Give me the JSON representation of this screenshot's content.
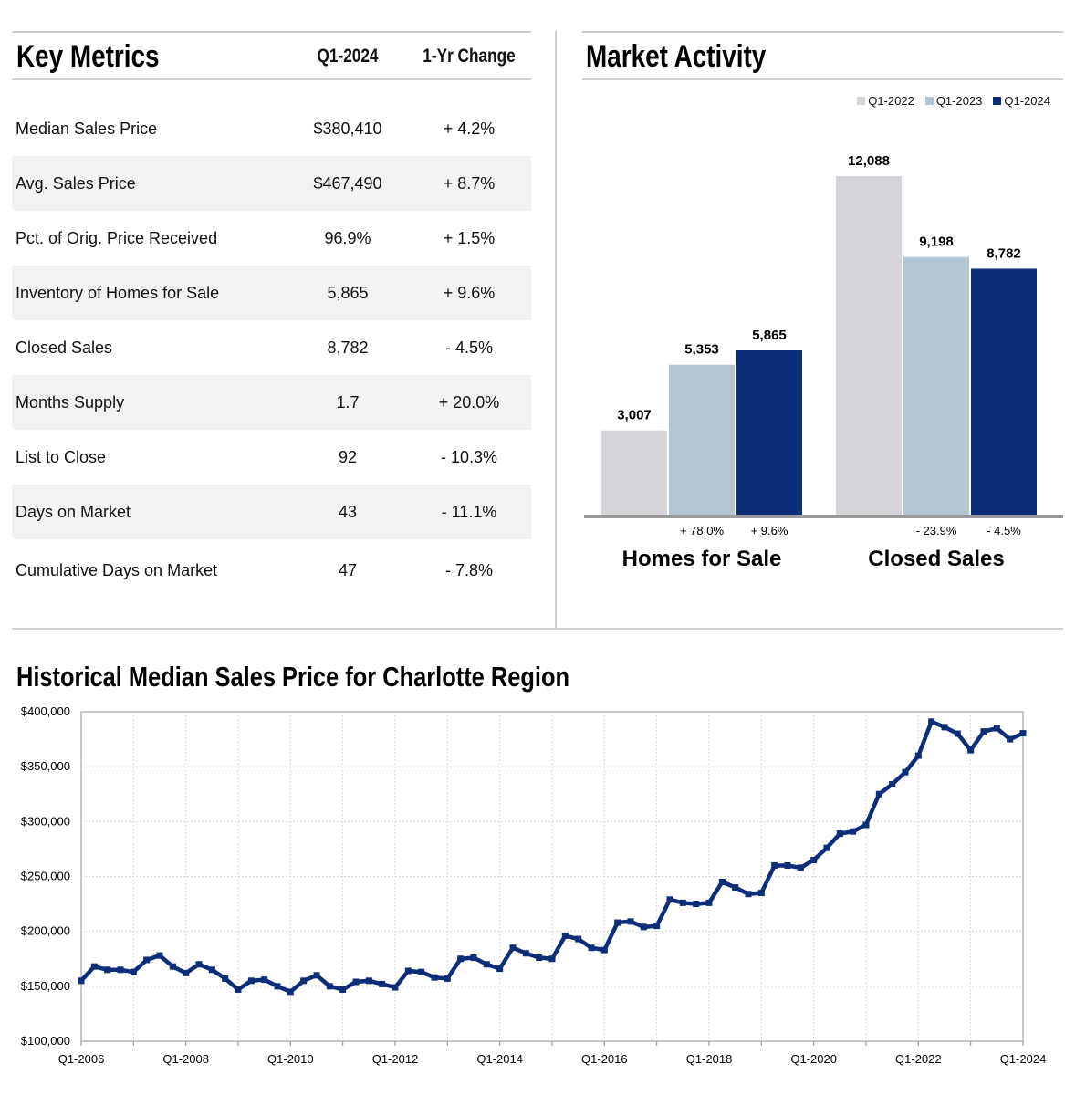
{
  "key_metrics": {
    "title": "Key Metrics",
    "col_period": "Q1-2024",
    "col_change": "1-Yr Change",
    "rows": [
      {
        "label": "Median Sales Price",
        "value": "$380,410",
        "change": "+ 4.2%"
      },
      {
        "label": "Avg. Sales Price",
        "value": "$467,490",
        "change": "+ 8.7%"
      },
      {
        "label": "Pct. of Orig. Price Received",
        "value": "96.9%",
        "change": "+ 1.5%"
      },
      {
        "label": "Inventory of Homes for Sale",
        "value": "5,865",
        "change": "+ 9.6%"
      },
      {
        "label": "Closed Sales",
        "value": "8,782",
        "change": "- 4.5%"
      },
      {
        "label": "Months Supply",
        "value": "1.7",
        "change": "+ 20.0%"
      },
      {
        "label": "List to Close",
        "value": "92",
        "change": "- 10.3%"
      },
      {
        "label": "Days on Market",
        "value": "43",
        "change": "- 11.1%"
      },
      {
        "label": "Cumulative Days on Market",
        "value": "47",
        "change": "- 7.8%"
      }
    ]
  },
  "market_activity": {
    "title": "Market Activity"
  },
  "historical": {
    "title": "Historical Median Sales Price for Charlotte Region"
  },
  "colors": {
    "q1_2022": "#d6d4d8",
    "q1_2023": "#b3c4d3",
    "q1_2024": "#0c2d77",
    "line": "#0c2d77"
  },
  "chart_data": [
    {
      "type": "bar",
      "categories": [
        "Homes for Sale",
        "Closed Sales"
      ],
      "legend_position": "top-right",
      "series": [
        {
          "name": "Q1-2022",
          "values": [
            3007,
            12088
          ],
          "labels": [
            "3,007",
            "12,088"
          ]
        },
        {
          "name": "Q1-2023",
          "values": [
            5353,
            9198
          ],
          "labels": [
            "5,353",
            "9,198"
          ]
        },
        {
          "name": "Q1-2024",
          "values": [
            5865,
            8782
          ],
          "labels": [
            "5,865",
            "8,782"
          ]
        }
      ],
      "changes": [
        [
          "+ 78.0%",
          "+ 9.6%"
        ],
        [
          "- 23.9%",
          "- 4.5%"
        ]
      ],
      "ylim": [
        0,
        12088
      ]
    },
    {
      "type": "line",
      "series": [
        {
          "values": [
            155000,
            168000,
            165000,
            165000,
            163000,
            174000,
            178000,
            168000,
            162000,
            170000,
            165000,
            157000,
            147000,
            155000,
            156000,
            150000,
            145000,
            155000,
            160000,
            150000,
            147000,
            154000,
            155000,
            152000,
            149000,
            164000,
            163000,
            158000,
            157000,
            175000,
            176000,
            170000,
            166000,
            185000,
            180000,
            176000,
            175000,
            196000,
            193000,
            185000,
            183000,
            208000,
            209000,
            204000,
            205000,
            229000,
            226000,
            225000,
            226000,
            245000,
            240000,
            234000,
            235000,
            260000,
            260000,
            258000,
            265000,
            276000,
            289000,
            291000,
            297000,
            325000,
            334000,
            345000,
            360000,
            391000,
            386000,
            380000,
            365000,
            382000,
            385000,
            375000,
            380410
          ]
        }
      ],
      "x_start": "Q1-2006",
      "x_end": "Q1-2024",
      "x_step": "quarter",
      "x_ticks": [
        "Q1-2006",
        "Q1-2008",
        "Q1-2010",
        "Q1-2012",
        "Q1-2014",
        "Q1-2016",
        "Q1-2018",
        "Q1-2020",
        "Q1-2022",
        "Q1-2024"
      ],
      "y_ticks": [
        "$100,000",
        "$150,000",
        "$200,000",
        "$250,000",
        "$300,000",
        "$350,000",
        "$400,000"
      ],
      "ylim": [
        100000,
        400000
      ],
      "grid": true
    }
  ]
}
